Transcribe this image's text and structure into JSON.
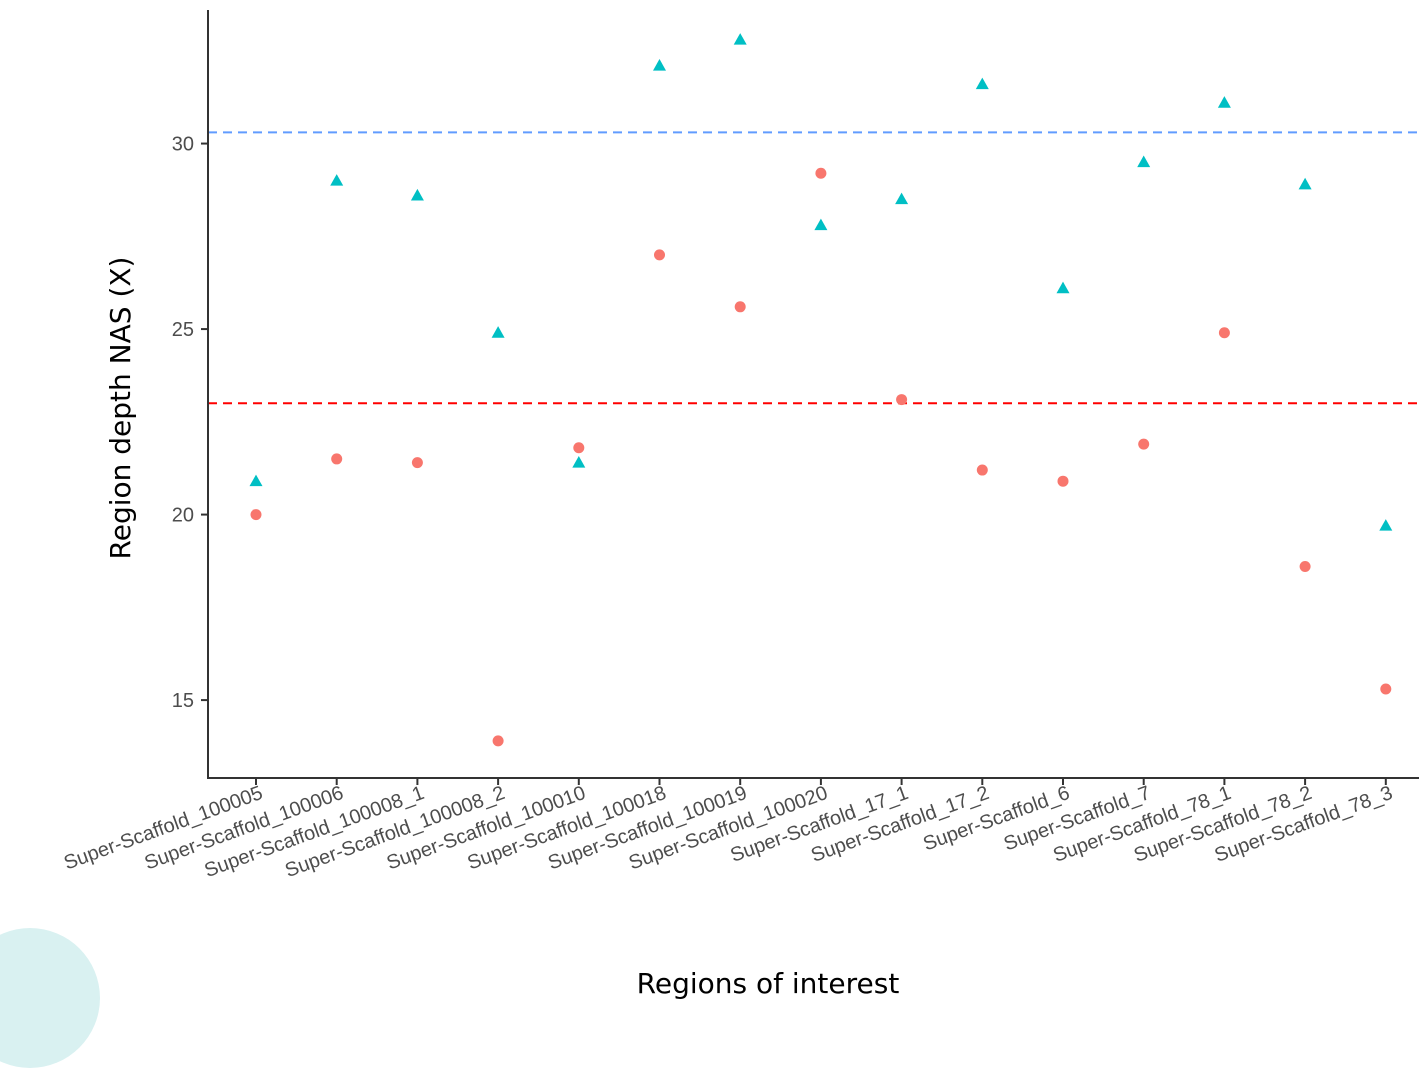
{
  "chart_data": {
    "type": "scatter",
    "xlabel": "Regions of interest",
    "ylabel": "Region depth NAS (X)",
    "categories": [
      "Super-Scaffold_100005",
      "Super-Scaffold_100006",
      "Super-Scaffold_100008_1",
      "Super-Scaffold_100008_2",
      "Super-Scaffold_100010",
      "Super-Scaffold_100018",
      "Super-Scaffold_100019",
      "Super-Scaffold_100020",
      "Super-Scaffold_17_1",
      "Super-Scaffold_17_2",
      "Super-Scaffold_6",
      "Super-Scaffold_7",
      "Super-Scaffold_78_1",
      "Super-Scaffold_78_2",
      "Super-Scaffold_78_3"
    ],
    "ylim": [
      12.9,
      33.6
    ],
    "yticks": [
      15,
      20,
      25,
      30
    ],
    "grid": false,
    "legend": "none",
    "series": [
      {
        "marker": "triangle",
        "color": "#00bfc4",
        "values": [
          20.9,
          29.0,
          28.6,
          24.9,
          21.4,
          32.1,
          32.8,
          27.8,
          28.5,
          31.6,
          26.1,
          29.5,
          31.1,
          28.9,
          19.7
        ]
      },
      {
        "marker": "circle",
        "color": "#f8766d",
        "values": [
          20.0,
          21.5,
          21.4,
          13.9,
          21.8,
          27.0,
          25.6,
          29.2,
          23.1,
          21.2,
          20.9,
          21.9,
          24.9,
          18.6,
          15.3
        ]
      }
    ],
    "hlines": [
      {
        "y": 30.3,
        "color": "#619cff",
        "style": "dashed"
      },
      {
        "y": 23.0,
        "color": "#ff0000",
        "style": "dashed"
      }
    ]
  }
}
